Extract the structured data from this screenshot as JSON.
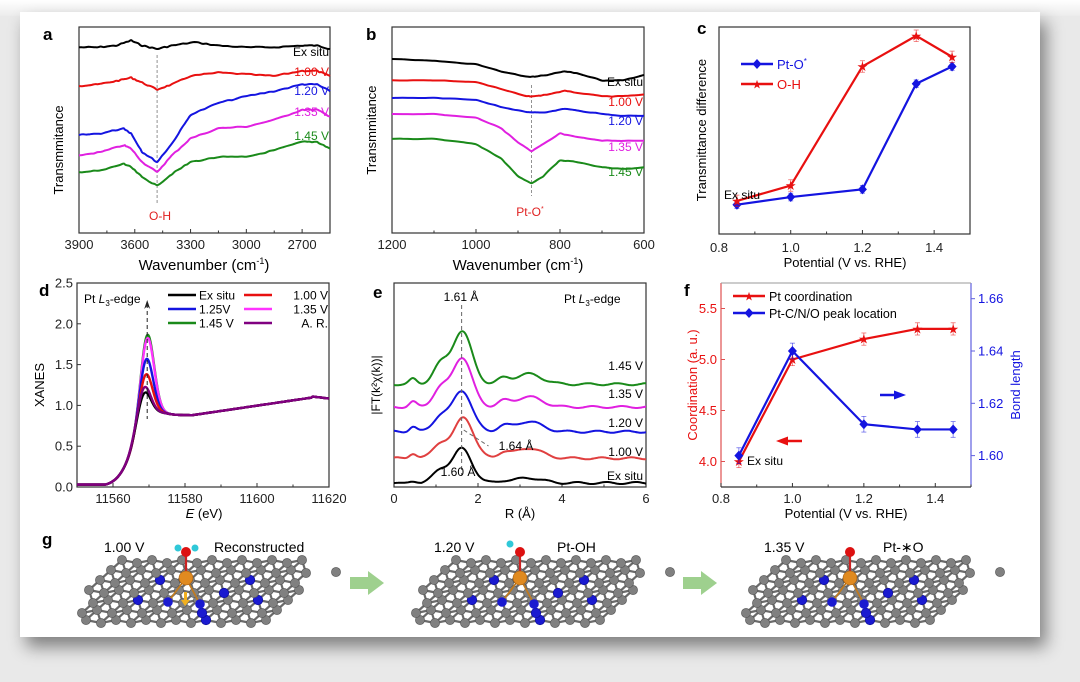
{
  "figure": {
    "panel_labels": [
      "a",
      "b",
      "c",
      "d",
      "e",
      "f",
      "g"
    ]
  },
  "chart_data": [
    {
      "id": "a",
      "type": "line",
      "title": "",
      "xlabel": "Wavenumber (cm⁻¹)",
      "ylabel": "Transmmitance",
      "xlim": [
        3900,
        2550
      ],
      "xticks": [
        3900,
        3600,
        3300,
        3000,
        2700
      ],
      "yticks": [],
      "annotation": {
        "text": "O-H",
        "x": 3480,
        "color": "#e02020"
      },
      "marker_line_x": 3480,
      "series": [
        {
          "name": "Ex situ",
          "color": "#000000",
          "x": [
            3900,
            3800,
            3700,
            3620,
            3560,
            3480,
            3400,
            3280,
            3150,
            3000,
            2850,
            2700,
            2620,
            2550
          ],
          "y": [
            0.7,
            0.7,
            0.71,
            0.74,
            0.71,
            0.69,
            0.71,
            0.73,
            0.71,
            0.7,
            0.7,
            0.71,
            0.71,
            0.69
          ]
        },
        {
          "name": "1.00 V",
          "color": "#e81010",
          "x": [
            3900,
            3800,
            3700,
            3620,
            3560,
            3480,
            3400,
            3300,
            3150,
            3000,
            2850,
            2700,
            2620,
            2550
          ],
          "y": [
            0.47,
            0.48,
            0.5,
            0.52,
            0.49,
            0.45,
            0.48,
            0.53,
            0.55,
            0.54,
            0.53,
            0.56,
            0.56,
            0.53
          ]
        },
        {
          "name": "1.20 V",
          "color": "#1414e0",
          "x": [
            3900,
            3780,
            3660,
            3620,
            3560,
            3480,
            3400,
            3300,
            3150,
            3000,
            2850,
            2700,
            2620,
            2550
          ],
          "y": [
            0.18,
            0.19,
            0.22,
            0.19,
            0.08,
            0.02,
            0.13,
            0.3,
            0.37,
            0.41,
            0.44,
            0.48,
            0.48,
            0.44
          ]
        },
        {
          "name": "1.35 V",
          "color": "#e020e0",
          "x": [
            3900,
            3780,
            3660,
            3620,
            3560,
            3480,
            3400,
            3300,
            3150,
            3000,
            2850,
            2700,
            2620,
            2550
          ],
          "y": [
            0.06,
            0.08,
            0.12,
            0.1,
            0.02,
            -0.04,
            0.06,
            0.16,
            0.22,
            0.23,
            0.27,
            0.33,
            0.33,
            0.29
          ]
        },
        {
          "name": "1.45 V",
          "color": "#1a8a1a",
          "x": [
            3900,
            3780,
            3660,
            3620,
            3560,
            3480,
            3400,
            3300,
            3150,
            3000,
            2850,
            2700,
            2620,
            2550
          ],
          "y": [
            -0.04,
            -0.03,
            0.01,
            -0.01,
            -0.07,
            -0.12,
            -0.05,
            0.02,
            0.05,
            0.05,
            0.09,
            0.14,
            0.14,
            0.1
          ]
        }
      ],
      "ylim": [
        -0.4,
        0.82
      ]
    },
    {
      "id": "b",
      "type": "line",
      "title": "",
      "xlabel": "Wavenumber (cm⁻¹)",
      "ylabel": "Transmmitance",
      "xlim": [
        1200,
        600
      ],
      "xticks": [
        1200,
        1000,
        800,
        600
      ],
      "yticks": [],
      "annotation": {
        "text": "Pt-O*",
        "x": 868,
        "color": "#e02020"
      },
      "marker_line_x": 868,
      "series": [
        {
          "name": "Ex situ",
          "color": "#000000",
          "x": [
            1200,
            1100,
            1000,
            940,
            880,
            860,
            830,
            790,
            760,
            700,
            650,
            600
          ],
          "y": [
            0.8,
            0.79,
            0.77,
            0.73,
            0.7,
            0.7,
            0.71,
            0.73,
            0.72,
            0.68,
            0.68,
            0.71
          ]
        },
        {
          "name": "1.00 V",
          "color": "#e81010",
          "x": [
            1200,
            1100,
            1000,
            940,
            880,
            860,
            830,
            790,
            760,
            700,
            650,
            600
          ],
          "y": [
            0.68,
            0.68,
            0.67,
            0.63,
            0.59,
            0.59,
            0.6,
            0.62,
            0.61,
            0.59,
            0.59,
            0.6
          ]
        },
        {
          "name": "1.20 V",
          "color": "#1414e0",
          "x": [
            1200,
            1100,
            1000,
            940,
            880,
            860,
            830,
            790,
            760,
            700,
            650,
            600
          ],
          "y": [
            0.58,
            0.58,
            0.57,
            0.53,
            0.5,
            0.5,
            0.5,
            0.52,
            0.51,
            0.49,
            0.48,
            0.48
          ]
        },
        {
          "name": "1.35 V",
          "color": "#e020e0",
          "x": [
            1200,
            1100,
            1000,
            940,
            900,
            868,
            840,
            800,
            760,
            700,
            650,
            600
          ],
          "y": [
            0.49,
            0.49,
            0.47,
            0.41,
            0.33,
            0.28,
            0.32,
            0.38,
            0.36,
            0.34,
            0.34,
            0.34
          ]
        },
        {
          "name": "1.45 V",
          "color": "#1a8a1a",
          "x": [
            1200,
            1100,
            1000,
            940,
            900,
            868,
            840,
            800,
            760,
            700,
            650,
            600
          ],
          "y": [
            0.35,
            0.35,
            0.32,
            0.24,
            0.14,
            0.1,
            0.14,
            0.23,
            0.22,
            0.19,
            0.18,
            0.19
          ]
        }
      ],
      "ylim": [
        -0.18,
        0.98
      ]
    },
    {
      "id": "c",
      "type": "line",
      "title": "",
      "xlabel": "Potential (V vs. RHE)",
      "ylabel": "Transmittance difference",
      "xlim": [
        0.8,
        1.5
      ],
      "xticks": [
        0.8,
        1.0,
        1.2,
        1.4
      ],
      "ylim": [
        0,
        1
      ],
      "legend": "top-left",
      "annotation": {
        "text": "Ex situ",
        "x": 0.85
      },
      "series": [
        {
          "name": "Pt-O*",
          "color": "#1414e0",
          "marker": "diamond",
          "x": [
            0.85,
            1.0,
            1.2,
            1.35,
            1.45
          ],
          "y": [
            0.09,
            0.13,
            0.17,
            0.72,
            0.81
          ],
          "err": [
            0.02,
            0.02,
            0.02,
            0.02,
            0.02
          ]
        },
        {
          "name": "O-H",
          "color": "#e81010",
          "marker": "star",
          "x": [
            0.85,
            1.0,
            1.2,
            1.35,
            1.45
          ],
          "y": [
            0.11,
            0.19,
            0.81,
            0.97,
            0.86
          ],
          "err": [
            0.03,
            0.03,
            0.03,
            0.03,
            0.03
          ]
        }
      ]
    },
    {
      "id": "d",
      "type": "line",
      "title": "",
      "xlabel": "E (eV)",
      "ylabel": "XANES",
      "xlim": [
        11550,
        11620
      ],
      "ylim": [
        0.0,
        2.5
      ],
      "xticks": [
        11560,
        11580,
        11600,
        11620
      ],
      "yticks": [
        0.0,
        0.5,
        1.0,
        1.5,
        2.0,
        2.5
      ],
      "annotation": {
        "text": "Pt L3-edge"
      },
      "marker_line_x": 11569.5,
      "legend": "top-right",
      "series": [
        {
          "name": "Ex situ",
          "color": "#000000",
          "peak": 1.38,
          "peak_x": 11568.5
        },
        {
          "name": "1.00 V",
          "color": "#e81010",
          "peak": 1.58,
          "peak_x": 11569
        },
        {
          "name": "1.25V",
          "color": "#1414e0",
          "peak": 1.76,
          "peak_x": 11569.2
        },
        {
          "name": "1.35 V",
          "color": "#ff33ff",
          "peak": 2.0,
          "peak_x": 11569.5
        },
        {
          "name": "1.45 V",
          "color": "#1a8a1a",
          "peak": 2.04,
          "peak_x": 11569.5
        },
        {
          "name": "A. R.",
          "color": "#800080",
          "peak": 1.45,
          "peak_x": 11568.5
        }
      ]
    },
    {
      "id": "e",
      "type": "line",
      "title": "",
      "xlabel": "R (Å)",
      "ylabel": "|FT(k²χ(k))|",
      "xlim": [
        0,
        6
      ],
      "xticks": [
        0,
        2,
        4,
        6
      ],
      "annotation_main": "Pt L3-edge",
      "annotations": [
        {
          "text": "1.61 Å",
          "x": 1.61
        },
        {
          "text": "1.64 Å",
          "x": 1.64
        },
        {
          "text": "1.60 Å",
          "x": 1.6
        }
      ],
      "series": [
        {
          "name": "Ex situ",
          "color": "#000000",
          "offset": 0.0,
          "peak": 1.0
        },
        {
          "name": "1.00 V",
          "color": "#e04040",
          "offset": 0.65,
          "peak": 1.2
        },
        {
          "name": "1.20 V",
          "color": "#1414e0",
          "offset": 1.35,
          "peak": 1.2
        },
        {
          "name": "1.35 V",
          "color": "#e020e0",
          "offset": 2.0,
          "peak": 1.45
        },
        {
          "name": "1.45 V",
          "color": "#1a8a1a",
          "offset": 2.6,
          "peak": 1.55
        }
      ]
    },
    {
      "id": "f",
      "type": "line",
      "title": "",
      "xlabel": "Potential (V vs. RHE)",
      "ylabel_left": "Coordination (a. u.)",
      "ylabel_right": "Bond length",
      "xlim": [
        0.8,
        1.5
      ],
      "ylim_left": [
        3.75,
        5.75
      ],
      "ylim_right": [
        1.588,
        1.666
      ],
      "xticks": [
        0.8,
        1.0,
        1.2,
        1.4
      ],
      "yticks_left": [
        4.0,
        4.5,
        5.0,
        5.5
      ],
      "yticks_right": [
        1.6,
        1.62,
        1.64,
        1.66
      ],
      "legend": "top-left",
      "annotation": {
        "text": "Ex situ"
      },
      "series": [
        {
          "name": "Pt coordination",
          "color": "#e81010",
          "axis": "left",
          "marker": "star",
          "x": [
            0.85,
            1.0,
            1.2,
            1.35,
            1.45
          ],
          "y": [
            4.0,
            5.0,
            5.2,
            5.3,
            5.3
          ],
          "err": [
            0.06,
            0.06,
            0.06,
            0.06,
            0.06
          ]
        },
        {
          "name": "Pt-C/N/O peak location",
          "color": "#1414e0",
          "axis": "right",
          "marker": "diamond",
          "x": [
            0.85,
            1.0,
            1.2,
            1.35,
            1.45
          ],
          "y": [
            1.6,
            1.64,
            1.612,
            1.61,
            1.61
          ],
          "err": [
            0.003,
            0.003,
            0.003,
            0.003,
            0.003
          ]
        }
      ]
    }
  ],
  "panel_g": {
    "states": [
      {
        "potential": "1.00 V",
        "label": "Reconstructed",
        "adsorbate": "H2O"
      },
      {
        "potential": "1.20 V",
        "label": "Pt-OH",
        "adsorbate": "OH"
      },
      {
        "potential": "1.35 V",
        "label": "Pt-*O",
        "adsorbate": "O"
      }
    ],
    "colors": {
      "carbon": "#808080",
      "nitrogen": "#1a1ad0",
      "platinum": "#e08a20",
      "oxygen": "#dd1111",
      "hydrogen": "#30c8d8",
      "arrow": "#9ed08e",
      "up_arrow": "#f0b020"
    }
  },
  "text": {
    "a_series_labels": [
      "Ex situ",
      "1.00 V",
      "1.20 V",
      "1.35 V",
      "1.45 V"
    ],
    "b_series_labels": [
      "Ex situ",
      "1.00 V",
      "1.20 V",
      "1.35 V",
      "1.45 V"
    ],
    "oh": "O-H",
    "pto": "Pt-O",
    "pto_star": "*",
    "c_leg1": "Pt-O",
    "c_leg2": "O-H",
    "ex_situ": "Ex situ",
    "d_edge_a": "Pt ",
    "d_edge_L": "L",
    "d_edge_3": "3",
    "d_edge_b": "-edge",
    "e_labels": [
      "1.45 V",
      "1.35 V",
      "1.20 V",
      "1.00 V",
      "Ex situ"
    ],
    "e_161": "1.61 Å",
    "e_164": "1.64 Å",
    "e_160": "1.60 Å",
    "f_leg1": "Pt coordination",
    "f_leg2": "Pt-C/N/O peak location",
    "xl_wave": "Wavenumber (cm",
    "xl_wave_sup": "-1",
    "xl_wave_end": ")",
    "yl_trans": "Transmmitance",
    "yl_tdiff": "Transmittance difference",
    "xl_pot": "Potential (V vs. RHE)",
    "yl_xanes": "XANES",
    "xl_E": "E",
    "xl_E_unit": " (eV)",
    "yl_ft": "|FT(k²χ(k))|",
    "xl_R": "R (Å)",
    "yl_coord": "Coordination (a. u.)",
    "yl_bond": "Bond length",
    "g_labels": [
      "1.00 V",
      "Reconstructed",
      "1.20 V",
      "Pt-OH",
      "1.35 V",
      "Pt-∗O"
    ]
  }
}
